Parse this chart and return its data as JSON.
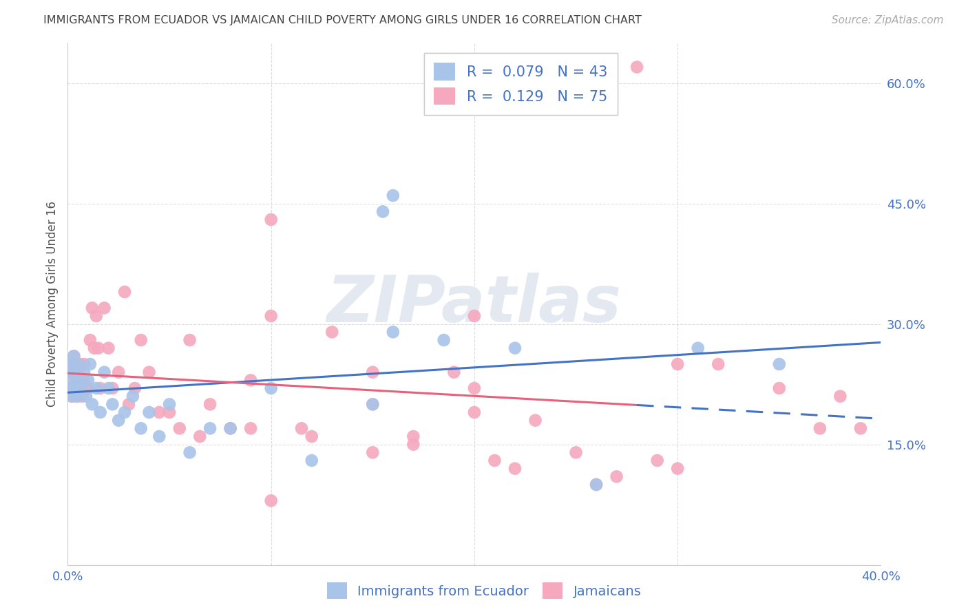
{
  "title": "IMMIGRANTS FROM ECUADOR VS JAMAICAN CHILD POVERTY AMONG GIRLS UNDER 16 CORRELATION CHART",
  "source": "Source: ZipAtlas.com",
  "ylabel": "Child Poverty Among Girls Under 16",
  "legend_label1": "Immigrants from Ecuador",
  "legend_label2": "Jamaicans",
  "series1_r": "0.079",
  "series1_n": "43",
  "series2_r": "0.129",
  "series2_n": "75",
  "blue_color": "#a8c4e8",
  "pink_color": "#f5a8be",
  "blue_line_color": "#4472c4",
  "pink_line_color": "#e8607a",
  "dashed_line_color": "#4472c4",
  "title_color": "#444444",
  "source_color": "#aaaaaa",
  "tick_color": "#4472c4",
  "ylabel_color": "#555555",
  "legend_text_color": "#4472c4",
  "watermark_color": "#e4e8f0",
  "grid_color": "#dddddd",
  "xlim": [
    0.0,
    0.4
  ],
  "ylim": [
    0.0,
    0.65
  ],
  "xticks": [
    0.0,
    0.1,
    0.2,
    0.3,
    0.4
  ],
  "xtick_labels": [
    "0.0%",
    "",
    "",
    "",
    "40.0%"
  ],
  "yticks": [
    0.15,
    0.3,
    0.45,
    0.6
  ],
  "ytick_labels": [
    "15.0%",
    "30.0%",
    "45.0%",
    "60.0%"
  ],
  "blue_x": [
    0.001,
    0.001,
    0.002,
    0.002,
    0.003,
    0.003,
    0.004,
    0.004,
    0.005,
    0.005,
    0.006,
    0.007,
    0.008,
    0.009,
    0.01,
    0.011,
    0.012,
    0.014,
    0.016,
    0.018,
    0.02,
    0.022,
    0.025,
    0.028,
    0.032,
    0.036,
    0.04,
    0.045,
    0.05,
    0.06,
    0.07,
    0.08,
    0.1,
    0.12,
    0.15,
    0.16,
    0.185,
    0.22,
    0.26,
    0.31,
    0.35,
    0.155,
    0.16
  ],
  "blue_y": [
    0.22,
    0.25,
    0.24,
    0.21,
    0.23,
    0.26,
    0.22,
    0.24,
    0.21,
    0.25,
    0.23,
    0.22,
    0.24,
    0.21,
    0.23,
    0.25,
    0.2,
    0.22,
    0.19,
    0.24,
    0.22,
    0.2,
    0.18,
    0.19,
    0.21,
    0.17,
    0.19,
    0.16,
    0.2,
    0.14,
    0.17,
    0.17,
    0.22,
    0.13,
    0.2,
    0.29,
    0.28,
    0.27,
    0.1,
    0.27,
    0.25,
    0.44,
    0.46
  ],
  "pink_x": [
    0.001,
    0.001,
    0.002,
    0.002,
    0.002,
    0.003,
    0.003,
    0.003,
    0.004,
    0.004,
    0.004,
    0.005,
    0.005,
    0.006,
    0.006,
    0.007,
    0.007,
    0.008,
    0.008,
    0.009,
    0.01,
    0.011,
    0.012,
    0.013,
    0.014,
    0.015,
    0.016,
    0.018,
    0.02,
    0.022,
    0.025,
    0.028,
    0.03,
    0.033,
    0.036,
    0.04,
    0.045,
    0.05,
    0.055,
    0.06,
    0.065,
    0.07,
    0.08,
    0.09,
    0.1,
    0.115,
    0.13,
    0.15,
    0.17,
    0.19,
    0.21,
    0.23,
    0.26,
    0.29,
    0.32,
    0.35,
    0.37,
    0.39,
    0.1,
    0.2,
    0.3,
    0.1,
    0.2,
    0.3,
    0.38,
    0.09,
    0.12,
    0.15,
    0.22,
    0.27,
    0.17,
    0.15,
    0.2,
    0.25,
    0.28
  ],
  "pink_y": [
    0.22,
    0.24,
    0.22,
    0.25,
    0.21,
    0.24,
    0.22,
    0.26,
    0.23,
    0.21,
    0.25,
    0.24,
    0.22,
    0.25,
    0.23,
    0.22,
    0.21,
    0.23,
    0.25,
    0.22,
    0.22,
    0.28,
    0.32,
    0.27,
    0.31,
    0.27,
    0.22,
    0.32,
    0.27,
    0.22,
    0.24,
    0.34,
    0.2,
    0.22,
    0.28,
    0.24,
    0.19,
    0.19,
    0.17,
    0.28,
    0.16,
    0.2,
    0.17,
    0.23,
    0.43,
    0.17,
    0.29,
    0.24,
    0.16,
    0.24,
    0.13,
    0.18,
    0.1,
    0.13,
    0.25,
    0.22,
    0.17,
    0.17,
    0.08,
    0.31,
    0.12,
    0.31,
    0.19,
    0.25,
    0.21,
    0.17,
    0.16,
    0.14,
    0.12,
    0.11,
    0.15,
    0.2,
    0.22,
    0.14,
    0.62
  ]
}
